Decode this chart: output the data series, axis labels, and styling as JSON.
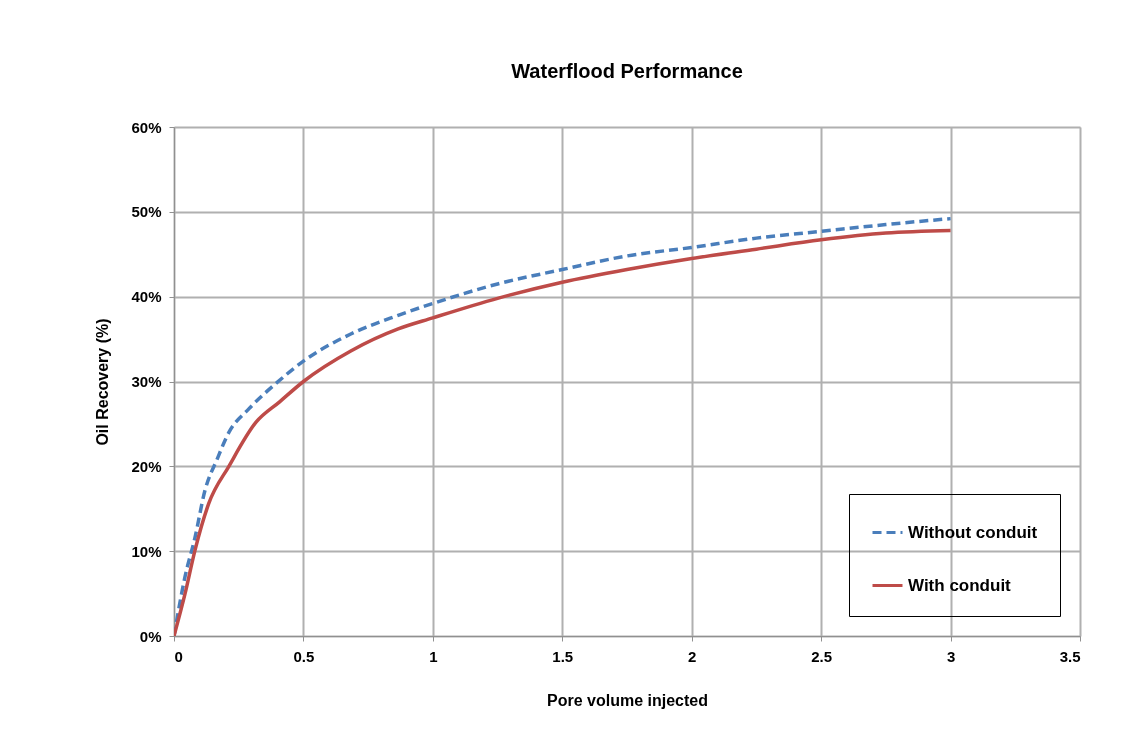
{
  "chart_data": {
    "type": "line",
    "title": "Waterflood Performance",
    "xlabel": "Pore volume injected",
    "ylabel": "Oil Recovery (%)",
    "xlim": [
      0,
      3.5
    ],
    "xticks": [
      0,
      0.5,
      1,
      1.5,
      2,
      2.5,
      3,
      3.5
    ],
    "ylim": [
      0,
      60
    ],
    "yticks": [
      {
        "value": 0,
        "label": "0%"
      },
      {
        "value": 10,
        "label": "10%"
      },
      {
        "value": 20,
        "label": "20%"
      },
      {
        "value": 30,
        "label": "30%"
      },
      {
        "value": 40,
        "label": "40%"
      },
      {
        "value": 50,
        "label": "50%"
      },
      {
        "value": 60,
        "label": "60%"
      }
    ],
    "grid": true,
    "legend": "bottom right",
    "marker": "none",
    "series": [
      {
        "name": "Without conduit",
        "color": "#4a7ebb",
        "line_style": "dashed",
        "x": [
          0,
          0.042,
          0.081,
          0.12,
          0.166,
          0.212,
          0.29,
          0.395,
          0.5,
          0.683,
          0.866,
          1,
          1.25,
          1.5,
          1.75,
          2,
          2.25,
          2.5,
          2.75,
          3
        ],
        "values": [
          0,
          6.9,
          11.6,
          17.2,
          20.8,
          24.0,
          26.8,
          29.8,
          32.4,
          35.6,
          37.8,
          39.2,
          41.5,
          43.2,
          44.8,
          45.8,
          46.9,
          47.7,
          48.5,
          49.2
        ]
      },
      {
        "name": "With conduit",
        "color": "#be4b48",
        "line_style": "solid",
        "x": [
          0,
          0.042,
          0.081,
          0.134,
          0.212,
          0.317,
          0.408,
          0.5,
          0.683,
          0.866,
          1,
          1.25,
          1.5,
          1.75,
          2,
          2.25,
          2.5,
          2.75,
          3
        ],
        "values": [
          0,
          4.9,
          10.1,
          15.6,
          20.0,
          25.2,
          27.6,
          30.0,
          33.6,
          36.2,
          37.5,
          39.8,
          41.7,
          43.2,
          44.5,
          45.6,
          46.7,
          47.5,
          47.8
        ]
      }
    ]
  }
}
